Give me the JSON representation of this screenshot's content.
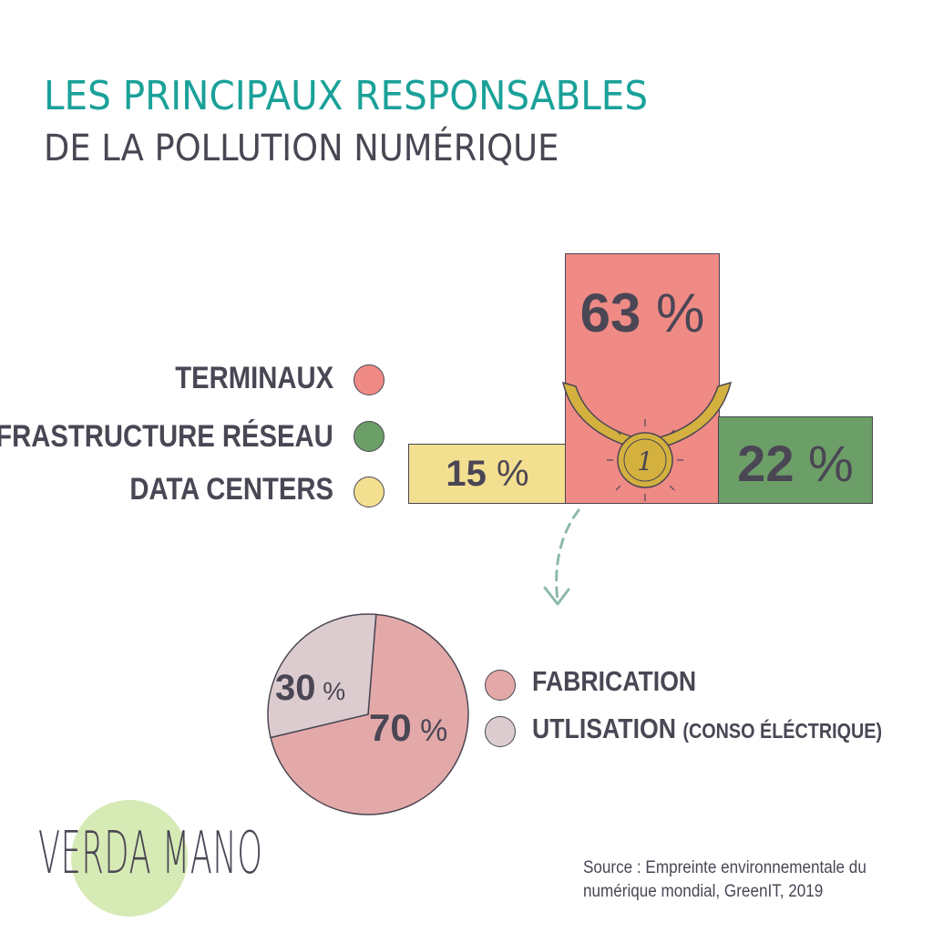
{
  "title": {
    "line1": "LES PRINCIPAUX RESPONSABLES",
    "line2": "DE LA POLLUTION NUMÉRIQUE"
  },
  "colors": {
    "title_accent": "#1aa199",
    "text_dark": "#4a4654",
    "terminaux": "#f08a85",
    "infrastructure": "#6c9e67",
    "datacenters": "#f3df90",
    "fabrication": "#e3a9a9",
    "utilisation": "#dcccd0",
    "medal_gold": "#d4b13f",
    "arrow": "#8db9ac",
    "logo_green": "#cfe6a8"
  },
  "chart_data": [
    {
      "type": "bar",
      "categories": [
        "DATA CENTERS",
        "TERMINAUX",
        "INFRASTRUCTURE RÉSEAU"
      ],
      "values": [
        15,
        63,
        22
      ],
      "value_labels": [
        "15",
        "63",
        "22"
      ],
      "unit": "%",
      "legend": [
        "TERMINAUX",
        "INFRASTRUCTURE RÉSEAU",
        "DATA CENTERS"
      ],
      "legend_position": "left"
    },
    {
      "type": "pie",
      "categories": [
        "FABRICATION",
        "UTLISATION"
      ],
      "values": [
        70,
        30
      ],
      "value_labels": [
        "70",
        "30"
      ],
      "unit": "%",
      "legend_notes": [
        "",
        "(CONSO ÉLÉCTRIQUE)"
      ],
      "legend_position": "right"
    }
  ],
  "medal": {
    "label": "1"
  },
  "logo": {
    "text": "VERDA MANO"
  },
  "source": {
    "line1": "Source : Empreinte environnementale du",
    "line2": "numérique mondial, GreenIT, 2019"
  }
}
